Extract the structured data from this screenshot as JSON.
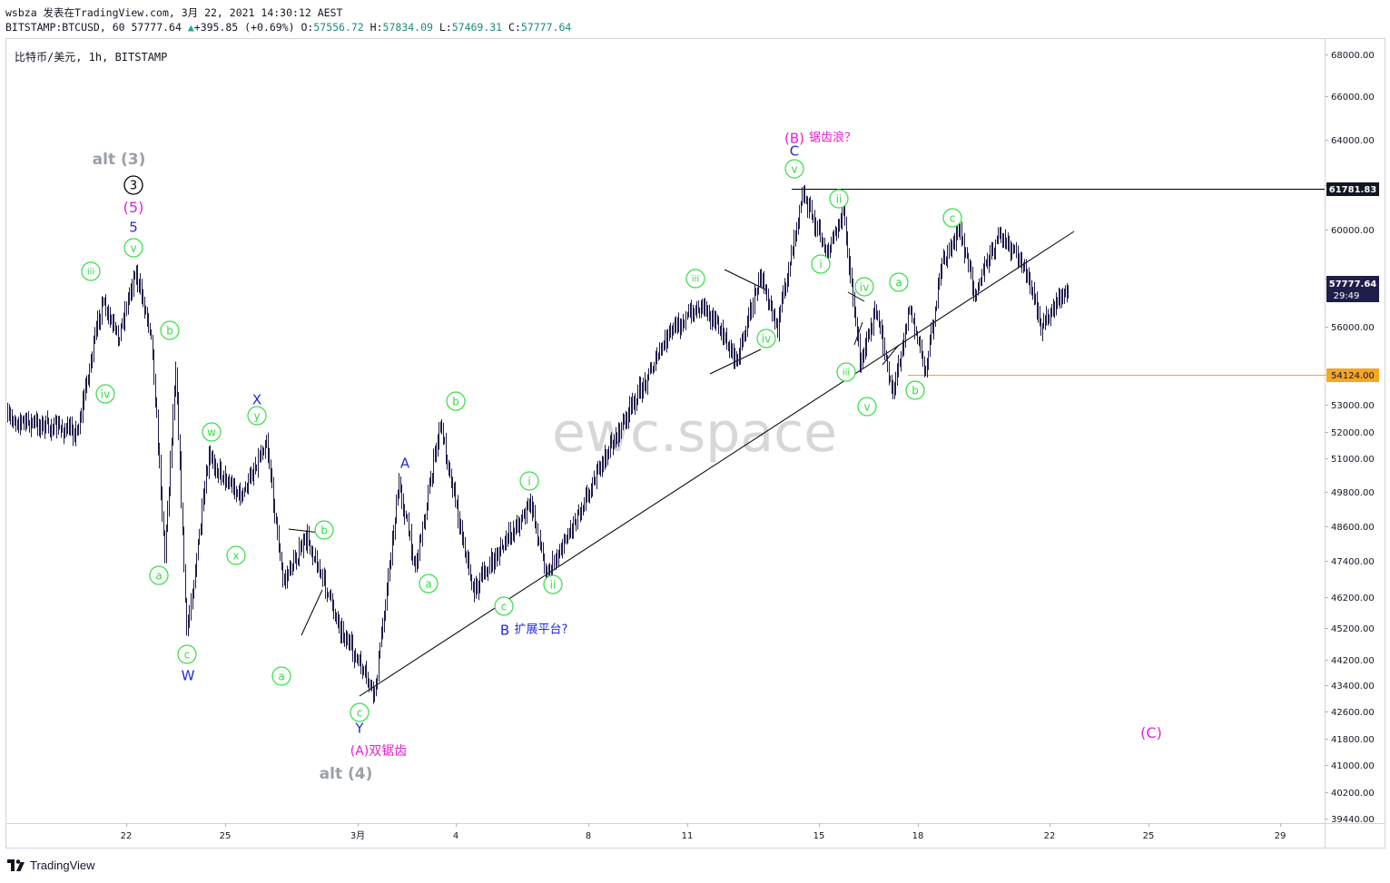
{
  "header": {
    "line1": "wsbza 发表在TradingView.com, 3月 22, 2021 14:30:12 AEST",
    "symbol": "BITSTAMP:BTCUSD, 60",
    "last": "57777.64",
    "change": "+395.85 (+0.69%)",
    "o_label": "O:",
    "o": "57556.72",
    "h_label": "H:",
    "h": "57834.09",
    "l_label": "L:",
    "l": "57469.31",
    "c_label": "C:",
    "c": "57777.64"
  },
  "symbol_title": "比特币/美元, 1h, BITSTAMP",
  "watermark": "ewc.space",
  "footer": {
    "brand": "TradingView"
  },
  "colors": {
    "up_arrow": "#26a69a",
    "wave_green": "#33dd44",
    "wave_blue": "#1f2bd6",
    "wave_magenta": "#e61fd2",
    "alt_gray": "#9aa0a6",
    "level_orange": "#f5a623",
    "candle": "#1f1d4a",
    "price_tag": "#1f1d4a"
  },
  "price_tags": {
    "resistance": "61781.83",
    "current": "57777.64",
    "current_timer": "29:49",
    "support": "54124.00"
  },
  "chart_data": {
    "type": "candlestick",
    "symbol": "BITSTAMP:BTCUSD",
    "interval": "1h",
    "y_axis_ticks": [
      "68000.00",
      "66000.00",
      "64000.00",
      "62000.00",
      "60000.00",
      "58000.00",
      "56000.00",
      "54000.00",
      "53000.00",
      "52000.00",
      "51000.00",
      "49800.00",
      "48600.00",
      "47400.00",
      "46200.00",
      "45200.00",
      "44200.00",
      "43400.00",
      "42600.00",
      "41800.00",
      "41000.00",
      "40200.00",
      "39440.00"
    ],
    "x_axis_ticks": [
      "22",
      "25",
      "3月",
      "4",
      "8",
      "11",
      "15",
      "18",
      "22",
      "25",
      "29"
    ],
    "horizontal_levels": [
      {
        "price": 61781.83,
        "color": "#000000"
      },
      {
        "price": 54124.0,
        "color": "#f5a623"
      }
    ],
    "trendline": {
      "from": {
        "date": "3月 1",
        "price": 43100
      },
      "to": {
        "date": "3月 20",
        "price": 59900
      }
    },
    "price_path": [
      {
        "date": "2月 19",
        "price": 52500
      },
      {
        "date": "2月 20",
        "price": 52000
      },
      {
        "date": "2月 21",
        "price": 57000
      },
      {
        "date": "2月 21",
        "price": 55500
      },
      {
        "date": "2月 22",
        "price": 58300
      },
      {
        "date": "2月 22",
        "price": 55800
      },
      {
        "date": "2月 23",
        "price": 47600
      },
      {
        "date": "2月 23",
        "price": 54400
      },
      {
        "date": "2月 23",
        "price": 45000
      },
      {
        "date": "2月 24",
        "price": 51000
      },
      {
        "date": "2月 25",
        "price": 49600
      },
      {
        "date": "2月 26",
        "price": 51700
      },
      {
        "date": "2月 26",
        "price": 46700
      },
      {
        "date": "2月 27",
        "price": 48200
      },
      {
        "date": "2月 28",
        "price": 45200
      },
      {
        "date": "3月 1",
        "price": 43100
      },
      {
        "date": "3月 2",
        "price": 50100
      },
      {
        "date": "3月 2",
        "price": 47200
      },
      {
        "date": "3月 3",
        "price": 52300
      },
      {
        "date": "3月 4",
        "price": 46400
      },
      {
        "date": "3月 6",
        "price": 49400
      },
      {
        "date": "3月 6",
        "price": 46900
      },
      {
        "date": "3月 8",
        "price": 51000
      },
      {
        "date": "3月 10",
        "price": 55800
      },
      {
        "date": "3月 11",
        "price": 57000
      },
      {
        "date": "3月 12",
        "price": 54600
      },
      {
        "date": "3月 13",
        "price": 58200
      },
      {
        "date": "3月 13",
        "price": 56000
      },
      {
        "date": "3月 14",
        "price": 61700
      },
      {
        "date": "3月 15",
        "price": 59000
      },
      {
        "date": "3月 15",
        "price": 60800
      },
      {
        "date": "3月 16",
        "price": 54600
      },
      {
        "date": "3月 16",
        "price": 56600
      },
      {
        "date": "3月 17",
        "price": 53400
      },
      {
        "date": "3月 17",
        "price": 56800
      },
      {
        "date": "3月 18",
        "price": 54200
      },
      {
        "date": "3月 18",
        "price": 58600
      },
      {
        "date": "3月 19",
        "price": 60000
      },
      {
        "date": "3月 19",
        "price": 57500
      },
      {
        "date": "3月 20",
        "price": 59800
      },
      {
        "date": "3月 21",
        "price": 58500
      },
      {
        "date": "3月 21",
        "price": 56000
      },
      {
        "date": "3月 22",
        "price": 57777.64
      }
    ],
    "annotations": [
      {
        "text": "alt (3)",
        "color": "gray"
      },
      {
        "text": "3",
        "color": "black",
        "circled": true
      },
      {
        "text": "(5)",
        "color": "magenta"
      },
      {
        "text": "5",
        "color": "blue"
      },
      {
        "text": "v",
        "color": "green",
        "circled": true
      },
      {
        "text": "iii",
        "color": "green",
        "circled": true
      },
      {
        "text": "iv",
        "color": "green",
        "circled": true
      },
      {
        "text": "b",
        "color": "green",
        "circled": true
      },
      {
        "text": "a",
        "color": "green",
        "circled": true
      },
      {
        "text": "c",
        "color": "green",
        "circled": true
      },
      {
        "text": "W",
        "color": "blue"
      },
      {
        "text": "w",
        "color": "green",
        "circled": true
      },
      {
        "text": "x",
        "color": "green",
        "circled": true
      },
      {
        "text": "X",
        "color": "blue"
      },
      {
        "text": "y",
        "color": "green",
        "circled": true
      },
      {
        "text": "a",
        "color": "green",
        "circled": true
      },
      {
        "text": "b",
        "color": "green",
        "circled": true
      },
      {
        "text": "c",
        "color": "green",
        "circled": true
      },
      {
        "text": "Y",
        "color": "blue"
      },
      {
        "text": "(A)双锯齿",
        "color": "magenta"
      },
      {
        "text": "alt (4)",
        "color": "gray"
      },
      {
        "text": "A",
        "color": "blue"
      },
      {
        "text": "a",
        "color": "green",
        "circled": true
      },
      {
        "text": "b",
        "color": "green",
        "circled": true
      },
      {
        "text": "c",
        "color": "green",
        "circled": true
      },
      {
        "text": "B",
        "color": "blue"
      },
      {
        "text": "扩展平台?",
        "color": "blue"
      },
      {
        "text": "i",
        "color": "green",
        "circled": true
      },
      {
        "text": "ii",
        "color": "green",
        "circled": true
      },
      {
        "text": "iii",
        "color": "green",
        "circled": true
      },
      {
        "text": "iv",
        "color": "green",
        "circled": true
      },
      {
        "text": "v",
        "color": "green",
        "circled": true
      },
      {
        "text": "C",
        "color": "blue"
      },
      {
        "text": "(B)",
        "color": "magenta"
      },
      {
        "text": "锯齿浪？",
        "color": "magenta"
      },
      {
        "text": "ii",
        "color": "green",
        "circled": true
      },
      {
        "text": "i",
        "color": "green",
        "circled": true
      },
      {
        "text": "iii",
        "color": "green",
        "circled": true
      },
      {
        "text": "iv",
        "color": "green",
        "circled": true
      },
      {
        "text": "v",
        "color": "green",
        "circled": true
      },
      {
        "text": "a",
        "color": "green",
        "circled": true
      },
      {
        "text": "b",
        "color": "green",
        "circled": true
      },
      {
        "text": "c",
        "color": "green",
        "circled": true
      },
      {
        "text": "(C)",
        "color": "magenta"
      }
    ]
  }
}
